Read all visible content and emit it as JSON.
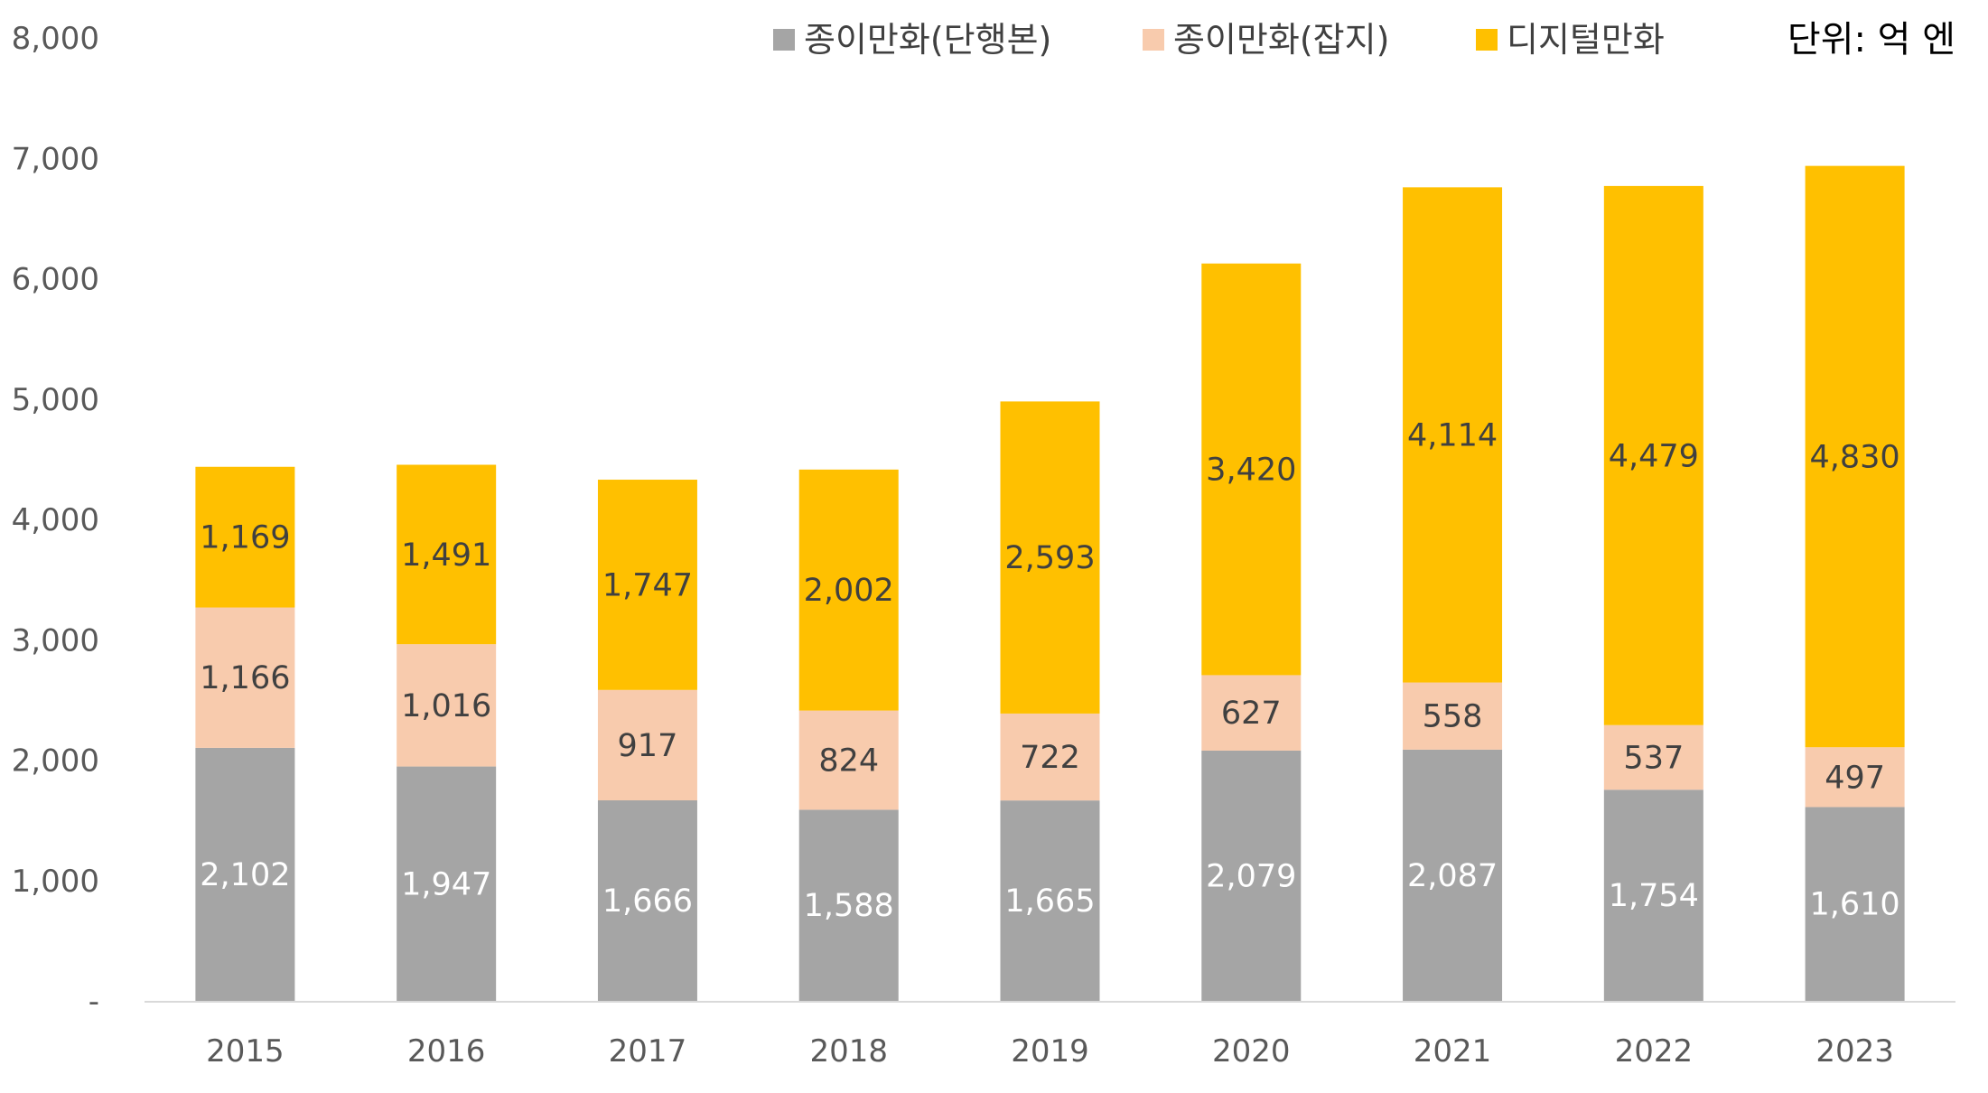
{
  "chart_data": {
    "type": "bar",
    "stacked": true,
    "unit_label": "단위: 억 엔",
    "categories": [
      "2015",
      "2016",
      "2017",
      "2018",
      "2019",
      "2020",
      "2021",
      "2022",
      "2023"
    ],
    "series": [
      {
        "name": "종이만화(단행본)",
        "color": "#a5a5a5",
        "label_color": "#ffffff",
        "values": [
          2102,
          1947,
          1666,
          1588,
          1665,
          2079,
          2087,
          1754,
          1610
        ]
      },
      {
        "name": "종이만화(잡지)",
        "color": "#f8cbad",
        "label_color": "#404040",
        "values": [
          1166,
          1016,
          917,
          824,
          722,
          627,
          558,
          537,
          497
        ]
      },
      {
        "name": "디지털만화",
        "color": "#ffc000",
        "label_color": "#404040",
        "values": [
          1169,
          1491,
          1747,
          2002,
          2593,
          3420,
          4114,
          4479,
          4830
        ]
      }
    ],
    "y_ticks": [
      "-",
      "1,000",
      "2,000",
      "3,000",
      "4,000",
      "5,000",
      "6,000",
      "7,000",
      "8,000"
    ],
    "ylim": [
      0,
      8000
    ],
    "grid": false,
    "legend_position": "top"
  }
}
